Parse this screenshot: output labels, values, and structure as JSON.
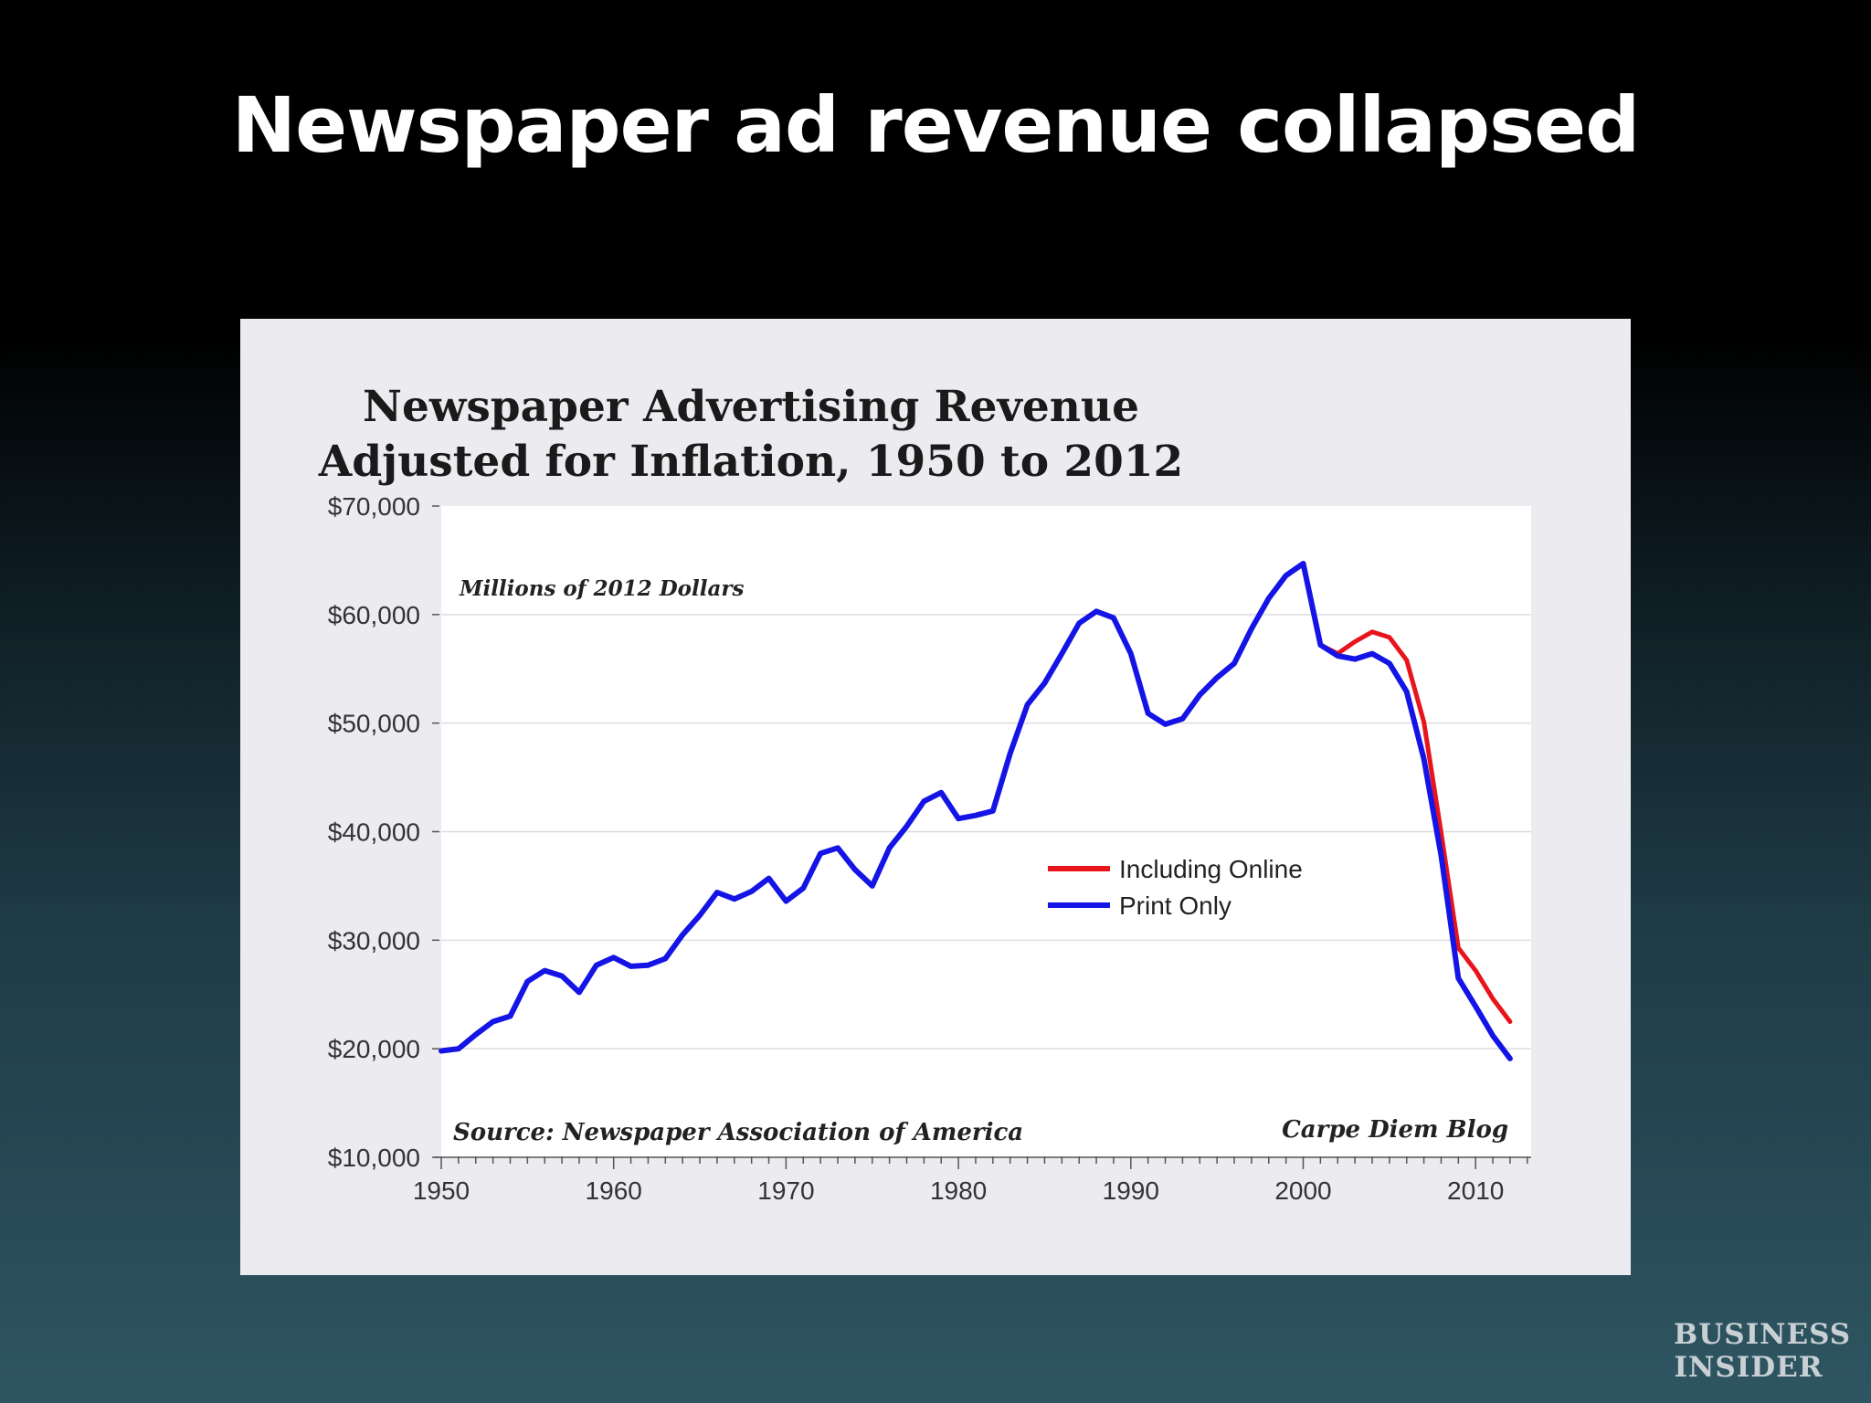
{
  "slide": {
    "title": "Newspaper ad revenue collapsed"
  },
  "logo": {
    "line1": "BUSINESS",
    "line2": "INSIDER"
  },
  "colors": {
    "including_online": "#e8141b",
    "print_only": "#1414e6",
    "panel_background": "#ecebef",
    "plot_background": "#ffffff",
    "gridline": "#dddddd"
  },
  "chart_data": {
    "type": "line",
    "title": "Newspaper Advertising Revenue\nAdjusted for Inflation, 1950 to 2012",
    "title_lines": [
      "Newspaper Advertising Revenue",
      "Adjusted for Inflation, 1950 to 2012"
    ],
    "units_note": "Millions of 2012 Dollars",
    "source_note": "Source: Newspaper Association of America",
    "credit_note": "Carpe Diem Blog",
    "xlabel": "",
    "ylabel": "",
    "xlim": [
      1950,
      2013
    ],
    "ylim": [
      10000,
      70000
    ],
    "x_ticks": [
      1950,
      1960,
      1970,
      1980,
      1990,
      2000,
      2010
    ],
    "x_tick_labels": [
      "1950",
      "1960",
      "1970",
      "1980",
      "1990",
      "2000",
      "2010"
    ],
    "y_ticks": [
      10000,
      20000,
      30000,
      40000,
      50000,
      60000,
      70000
    ],
    "y_tick_labels": [
      "$10,000",
      "$20,000",
      "$30,000",
      "$40,000",
      "$50,000",
      "$60,000",
      "$70,000"
    ],
    "grid": true,
    "legend_position": "center-right",
    "series": [
      {
        "name": "Print Only",
        "x": [
          1950,
          1951,
          1952,
          1953,
          1954,
          1955,
          1956,
          1957,
          1958,
          1959,
          1960,
          1961,
          1962,
          1963,
          1964,
          1965,
          1966,
          1967,
          1968,
          1969,
          1970,
          1971,
          1972,
          1973,
          1974,
          1975,
          1976,
          1977,
          1978,
          1979,
          1980,
          1981,
          1982,
          1983,
          1984,
          1985,
          1986,
          1987,
          1988,
          1989,
          1990,
          1991,
          1992,
          1993,
          1994,
          1995,
          1996,
          1997,
          1998,
          1999,
          2000,
          2001,
          2002,
          2003,
          2004,
          2005,
          2006,
          2007,
          2008,
          2009,
          2010,
          2011,
          2012
        ],
        "values": [
          19800,
          20000,
          21300,
          22500,
          23000,
          26200,
          27200,
          26700,
          25200,
          27700,
          28400,
          27600,
          27700,
          28300,
          30500,
          32300,
          34400,
          33800,
          34500,
          35700,
          33600,
          34800,
          38000,
          38500,
          36500,
          35000,
          38500,
          40500,
          42800,
          43600,
          41200,
          41500,
          41900,
          47200,
          51700,
          53700,
          56400,
          59200,
          60300,
          59700,
          56400,
          50900,
          49900,
          50400,
          52600,
          54200,
          55500,
          58700,
          61500,
          63600,
          64700,
          57200,
          56200,
          55900,
          56400,
          55500,
          52900,
          46700,
          37800,
          26500,
          23900,
          21200,
          19100
        ]
      },
      {
        "name": "Including Online",
        "x": [
          2001,
          2002,
          2003,
          2004,
          2005,
          2006,
          2007,
          2008,
          2009,
          2010,
          2011,
          2012
        ],
        "values": [
          57200,
          56400,
          57500,
          58400,
          57900,
          55800,
          50100,
          39900,
          29300,
          27200,
          24600,
          22500
        ]
      }
    ]
  }
}
